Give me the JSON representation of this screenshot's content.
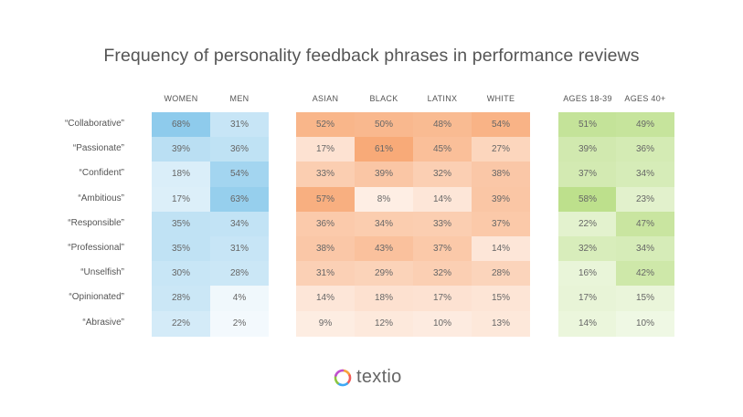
{
  "chart_data": {
    "type": "heatmap",
    "title": "Frequency of personality feedback phrases in performance reviews",
    "rows": [
      "“Collaborative”",
      "“Passionate”",
      "“Confident”",
      "“Ambitious”",
      "“Responsible”",
      "“Professional”",
      "“Unselfish”",
      "“Opinionated”",
      "“Abrasive”"
    ],
    "groups": [
      {
        "color": "#8ecbec",
        "columns": [
          {
            "label": "WOMEN",
            "values": [
              68,
              39,
              18,
              17,
              35,
              35,
              30,
              28,
              22
            ]
          },
          {
            "label": "MEN",
            "values": [
              31,
              36,
              54,
              63,
              34,
              31,
              28,
              4,
              2
            ]
          }
        ]
      },
      {
        "color": "#f8aa78",
        "columns": [
          {
            "label": "ASIAN",
            "values": [
              52,
              17,
              33,
              57,
              36,
              38,
              31,
              14,
              9
            ]
          },
          {
            "label": "BLACK",
            "values": [
              50,
              61,
              39,
              8,
              34,
              43,
              29,
              18,
              12
            ]
          },
          {
            "label": "LATINX",
            "values": [
              48,
              45,
              32,
              14,
              33,
              37,
              32,
              17,
              10
            ]
          },
          {
            "label": "WHITE",
            "values": [
              54,
              27,
              38,
              39,
              37,
              14,
              28,
              15,
              13
            ]
          }
        ]
      },
      {
        "color": "#bde08c",
        "columns": [
          {
            "label": "AGES 18-39",
            "values": [
              51,
              39,
              37,
              58,
              22,
              32,
              16,
              17,
              14
            ]
          },
          {
            "label": "AGES 40+",
            "values": [
              49,
              36,
              34,
              23,
              47,
              34,
              42,
              15,
              10
            ]
          }
        ]
      }
    ],
    "unit": "%"
  },
  "logo": {
    "text": "textio"
  }
}
